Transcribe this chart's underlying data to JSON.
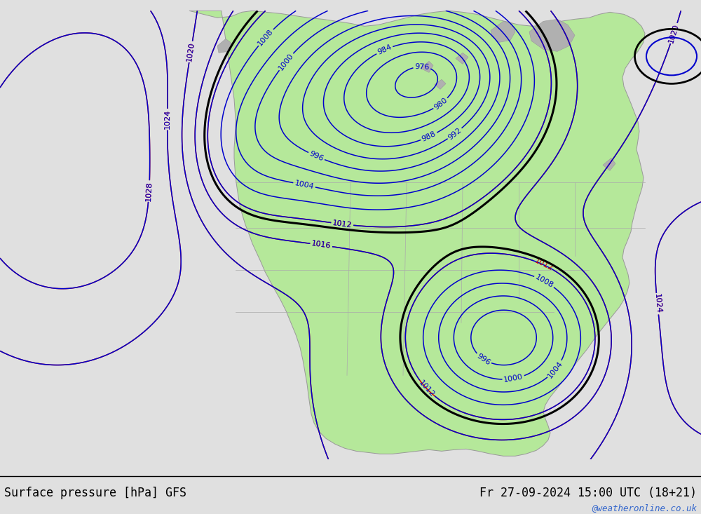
{
  "title_left": "Surface pressure [hPa] GFS",
  "title_right": "Fr 27-09-2024 15:00 UTC (18+21)",
  "watermark": "@weatheronline.co.uk",
  "bg_color": "#e0e0e0",
  "land_color": "#b5e89a",
  "ocean_color": "#e0e0e0",
  "coast_color": "#999999",
  "state_color": "#aaaaaa",
  "contour_color_black": "#000000",
  "contour_color_blue": "#0000cc",
  "contour_color_red": "#cc0000",
  "label_fontsize": 8,
  "title_fontsize": 12,
  "watermark_color": "#3366cc",
  "figsize": [
    10.0,
    7.33
  ],
  "dpi": 100
}
